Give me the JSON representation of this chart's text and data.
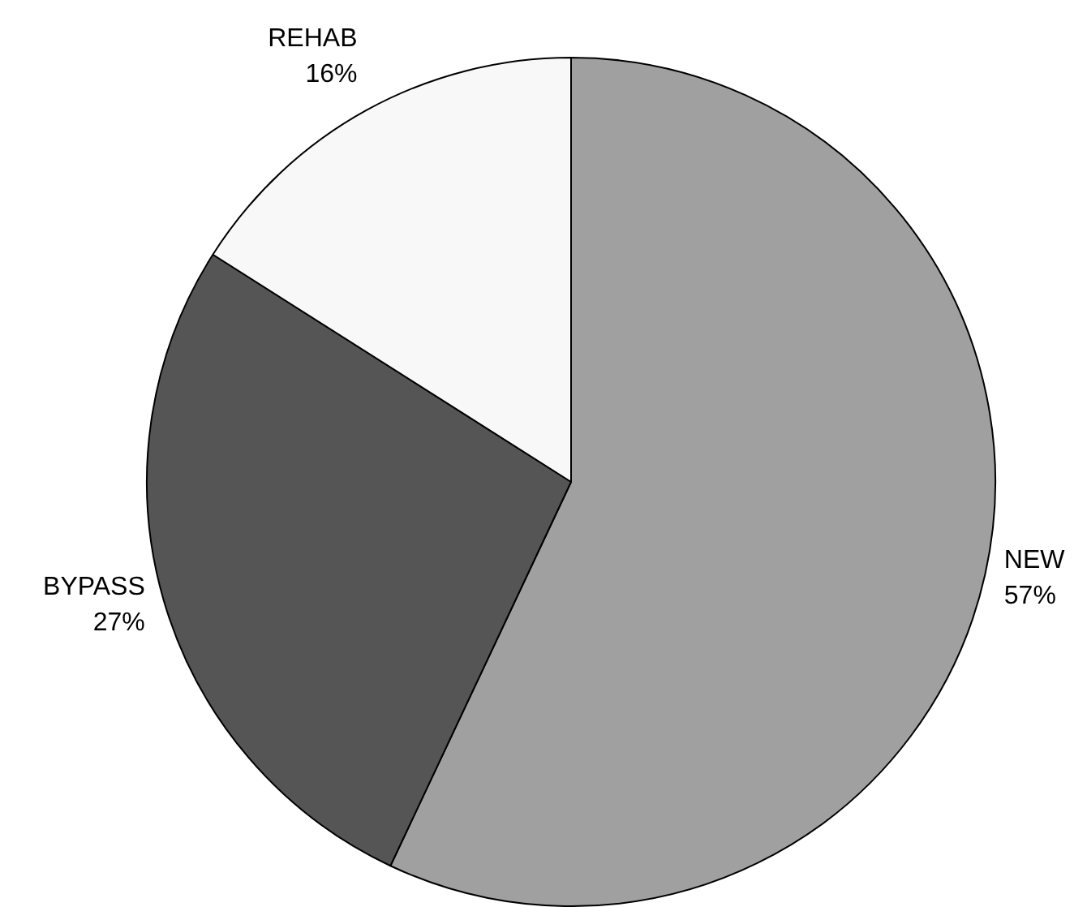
{
  "chart_data": {
    "type": "pie",
    "categories": [
      "NEW",
      "BYPASS",
      "REHAB"
    ],
    "values": [
      57,
      27,
      16
    ],
    "colors": [
      "#a0a0a0",
      "#555555",
      "#f8f8f8"
    ],
    "value_labels": [
      "57%",
      "27%",
      "16%"
    ],
    "legend": false
  }
}
